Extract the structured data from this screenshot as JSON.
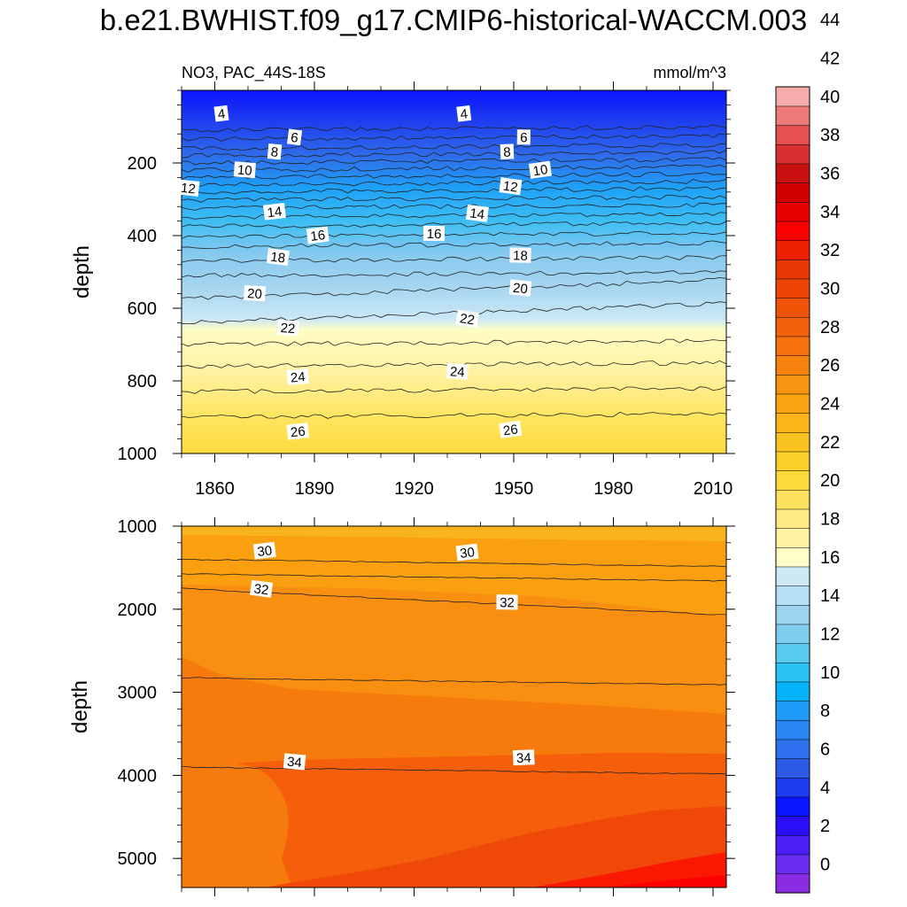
{
  "chart_data": {
    "type": "contour",
    "title": "b.e21.BWHIST.f09_g17.CMIP6-historical-WACCM.003",
    "variable_label": "NO3, PAC_44S-18S",
    "units_label": "mmol/m^3",
    "x_ticks": [
      1860,
      1890,
      1920,
      1950,
      1980,
      2010
    ],
    "xlim": [
      1850,
      2014
    ],
    "upper_panel": {
      "ylabel": "depth",
      "ylim": [
        0,
        1000
      ],
      "y_ticks": [
        200,
        400,
        600,
        800,
        1000
      ],
      "contours": [
        {
          "level": 4,
          "depth": 110
        },
        {
          "level": 6,
          "depth": 160
        },
        {
          "level": 8,
          "depth": 200
        },
        {
          "level": 10,
          "depth": 240
        },
        {
          "level": 12,
          "depth": 280
        },
        {
          "level": 14,
          "depth": 325
        },
        {
          "level": 16,
          "depth": 375
        },
        {
          "level": 18,
          "depth": 430
        },
        {
          "level": 20,
          "depth": 510
        },
        {
          "level": 22,
          "depth": 640
        },
        {
          "level": 24,
          "depth": 760
        },
        {
          "level": 26,
          "depth": 900
        }
      ],
      "contour_labels": [
        {
          "level": 4,
          "year": 1862,
          "depth": 65
        },
        {
          "level": 4,
          "year": 1935,
          "depth": 65
        },
        {
          "level": 6,
          "year": 1884,
          "depth": 130
        },
        {
          "level": 6,
          "year": 1953,
          "depth": 130
        },
        {
          "level": 8,
          "year": 1878,
          "depth": 170
        },
        {
          "level": 8,
          "year": 1948,
          "depth": 170
        },
        {
          "level": 10,
          "year": 1869,
          "depth": 220
        },
        {
          "level": 10,
          "year": 1958,
          "depth": 220
        },
        {
          "level": 12,
          "year": 1852,
          "depth": 270
        },
        {
          "level": 12,
          "year": 1949,
          "depth": 265
        },
        {
          "level": 14,
          "year": 1878,
          "depth": 335
        },
        {
          "level": 14,
          "year": 1939,
          "depth": 340
        },
        {
          "level": 16,
          "year": 1891,
          "depth": 400
        },
        {
          "level": 16,
          "year": 1926,
          "depth": 395
        },
        {
          "level": 18,
          "year": 1879,
          "depth": 460
        },
        {
          "level": 18,
          "year": 1952,
          "depth": 455
        },
        {
          "level": 20,
          "year": 1872,
          "depth": 560
        },
        {
          "level": 20,
          "year": 1952,
          "depth": 545
        },
        {
          "level": 22,
          "year": 1882,
          "depth": 655
        },
        {
          "level": 22,
          "year": 1936,
          "depth": 630
        },
        {
          "level": 24,
          "year": 1885,
          "depth": 790
        },
        {
          "level": 24,
          "year": 1933,
          "depth": 775
        },
        {
          "level": 26,
          "year": 1885,
          "depth": 940
        },
        {
          "level": 26,
          "year": 1949,
          "depth": 935
        }
      ]
    },
    "lower_panel": {
      "ylabel": "depth",
      "ylim": [
        1000,
        5350
      ],
      "y_ticks": [
        1000,
        2000,
        3000,
        4000,
        5000
      ],
      "contours": [
        {
          "level": 30,
          "depth": 1400
        },
        {
          "level": 32,
          "depth": 1750
        },
        {
          "level": 34,
          "depth": 3900
        }
      ],
      "contour_labels": [
        {
          "level": 30,
          "year": 1875,
          "depth": 1300
        },
        {
          "level": 30,
          "year": 1936,
          "depth": 1320
        },
        {
          "level": 32,
          "year": 1874,
          "depth": 1760
        },
        {
          "level": 32,
          "year": 1948,
          "depth": 1920
        },
        {
          "level": 34,
          "year": 1884,
          "depth": 3840
        },
        {
          "level": 34,
          "year": 1953,
          "depth": 3790
        }
      ]
    },
    "colorbar": {
      "levels": [
        0,
        2,
        4,
        6,
        8,
        10,
        12,
        14,
        16,
        18,
        20,
        22,
        24,
        26,
        28,
        30,
        32,
        34,
        36,
        38,
        40,
        42,
        44
      ],
      "labels": [
        "0",
        "2",
        "4",
        "6",
        "8",
        "10",
        "12",
        "14",
        "16",
        "18",
        "20",
        "22",
        "24",
        "26",
        "28",
        "30",
        "32",
        "34",
        "36",
        "38",
        "40",
        "42",
        "44"
      ],
      "colors": [
        "#8b2be2",
        "#6a2df0",
        "#4b1ef8",
        "#2a0ff8",
        "#0a14ff",
        "#1e3bf0",
        "#2d5ae6",
        "#2f70ee",
        "#2a86f4",
        "#1e9bf8",
        "#05b3fb",
        "#2cc2f6",
        "#5ccbf0",
        "#7fcdef",
        "#9cd3ee",
        "#b6dff3",
        "#cde9f6",
        "#fffec8",
        "#fff4a4",
        "#ffea85",
        "#fee25d",
        "#fdd93a",
        "#fcce28",
        "#fbc320",
        "#fbb41a",
        "#faa512",
        "#f99410",
        "#f8820e",
        "#f5720c",
        "#f2620a",
        "#ef5308",
        "#ec4506",
        "#ea3706",
        "#f02004",
        "#fd0000",
        "#e80000",
        "#d00000",
        "#c81010",
        "#d83030",
        "#e55050",
        "#ee7a7a",
        "#f7acac"
      ]
    }
  }
}
